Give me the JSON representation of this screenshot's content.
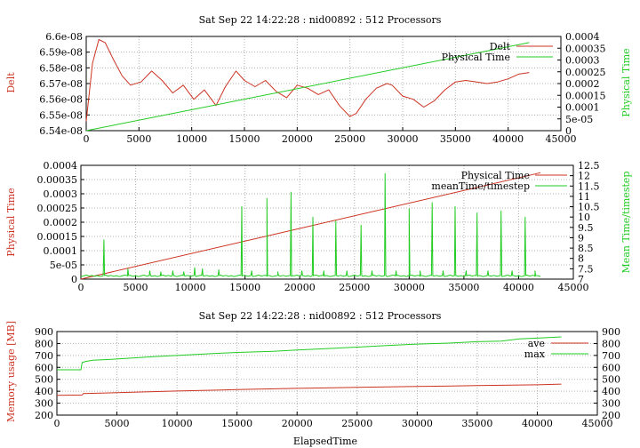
{
  "chart_data": [
    {
      "type": "line",
      "title": "Sat Sep 22 14:22:28 : nid00892 : 512 Processors",
      "xlim": [
        0,
        45000
      ],
      "xticks": [
        "0",
        "5000",
        "10000",
        "15000",
        "20000",
        "25000",
        "30000",
        "35000",
        "40000",
        "45000"
      ],
      "ylabel": "Delt",
      "ylim": [
        6.54e-08,
        6.6e-08
      ],
      "yticks": [
        "6.54e-08",
        "6.55e-08",
        "6.56e-08",
        "6.57e-08",
        "6.58e-08",
        "6.59e-08",
        "6.6e-08"
      ],
      "y2label": "Physical Time",
      "y2lim": [
        0,
        0.0004
      ],
      "y2ticks": [
        "0",
        "5e-05",
        "0.0001",
        "0.00015",
        "0.0002",
        "0.00025",
        "0.0003",
        "0.00035",
        "0.0004"
      ],
      "grid": true,
      "legend_position": "top-right",
      "series": [
        {
          "name": "Delt",
          "color": "#cc3322",
          "axis": "y",
          "x": [
            0,
            600,
            1200,
            1800,
            2600,
            3400,
            4200,
            5200,
            6200,
            7200,
            8200,
            9200,
            10200,
            11200,
            12300,
            13200,
            14200,
            15000,
            16000,
            17000,
            18000,
            19000,
            20000,
            21000,
            22000,
            23000,
            24000,
            25000,
            25600,
            26500,
            27500,
            28500,
            29000,
            30000,
            31000,
            32000,
            33000,
            34000,
            35000,
            36000,
            37000,
            38000,
            39000,
            40000,
            41000,
            42000
          ],
          "values": [
            6.546e-08,
            6.583e-08,
            6.598e-08,
            6.596e-08,
            6.585e-08,
            6.575e-08,
            6.569e-08,
            6.571e-08,
            6.578e-08,
            6.572e-08,
            6.564e-08,
            6.569e-08,
            6.56e-08,
            6.566e-08,
            6.556e-08,
            6.568e-08,
            6.578e-08,
            6.572e-08,
            6.568e-08,
            6.572e-08,
            6.565e-08,
            6.561e-08,
            6.569e-08,
            6.567e-08,
            6.563e-08,
            6.566e-08,
            6.556e-08,
            6.549e-08,
            6.551e-08,
            6.56e-08,
            6.567e-08,
            6.57e-08,
            6.569e-08,
            6.562e-08,
            6.56e-08,
            6.555e-08,
            6.559e-08,
            6.566e-08,
            6.571e-08,
            6.572e-08,
            6.571e-08,
            6.57e-08,
            6.571e-08,
            6.573e-08,
            6.576e-08,
            6.577e-08
          ]
        },
        {
          "name": "Physical Time",
          "color": "#22cc22",
          "axis": "y2",
          "x": [
            0,
            42000
          ],
          "values": [
            0,
            0.000374
          ]
        }
      ]
    },
    {
      "type": "line",
      "title": "",
      "xlim": [
        0,
        45000
      ],
      "xticks": [
        "0",
        "5000",
        "10000",
        "15000",
        "20000",
        "25000",
        "30000",
        "35000",
        "40000",
        "45000"
      ],
      "ylabel": "Physical Time",
      "ylim": [
        0,
        0.0004
      ],
      "yticks": [
        "0",
        "5e-05",
        "0.0001",
        "0.00015",
        "0.0002",
        "0.00025",
        "0.0003",
        "0.00035",
        "0.0004"
      ],
      "y2label": "Mean Time/timestep",
      "y2lim": [
        7,
        12.5
      ],
      "y2ticks": [
        "7",
        "7.5",
        "8",
        "8.5",
        "9",
        "9.5",
        "10",
        "10.5",
        "11",
        "11.5",
        "12",
        "12.5"
      ],
      "grid": true,
      "legend_position": "top-right",
      "series": [
        {
          "name": "Physical Time",
          "color": "#cc3322",
          "axis": "y",
          "x": [
            0,
            42000
          ],
          "values": [
            0,
            0.000374
          ]
        },
        {
          "name": "meanTime/timestep",
          "color": "#22cc22",
          "axis": "y2",
          "baseline": 7.12,
          "spikes": [
            [
              2100,
              8.9
            ],
            [
              4300,
              7.5
            ],
            [
              6300,
              7.4
            ],
            [
              7300,
              7.35
            ],
            [
              8400,
              7.4
            ],
            [
              9400,
              7.35
            ],
            [
              10400,
              7.55
            ],
            [
              11100,
              7.5
            ],
            [
              12600,
              7.45
            ],
            [
              14700,
              10.5
            ],
            [
              15600,
              7.4
            ],
            [
              17000,
              10.9
            ],
            [
              18000,
              7.35
            ],
            [
              19200,
              11.2
            ],
            [
              20200,
              7.4
            ],
            [
              21200,
              10.0
            ],
            [
              22200,
              7.4
            ],
            [
              23300,
              9.8
            ],
            [
              24300,
              7.4
            ],
            [
              25600,
              9.6
            ],
            [
              26600,
              7.4
            ],
            [
              27800,
              12.1
            ],
            [
              28800,
              7.4
            ],
            [
              30000,
              10.4
            ],
            [
              31000,
              7.4
            ],
            [
              32100,
              10.7
            ],
            [
              33100,
              7.4
            ],
            [
              34200,
              10.5
            ],
            [
              35200,
              7.4
            ],
            [
              36200,
              10.2
            ],
            [
              37200,
              7.4
            ],
            [
              38400,
              10.3
            ],
            [
              39400,
              7.4
            ],
            [
              40600,
              10.0
            ],
            [
              41500,
              7.4
            ]
          ]
        }
      ]
    },
    {
      "type": "line",
      "title": "Sat Sep 22 14:22:28 : nid00892 : 512 Processors",
      "xlabel": "ElapsedTime",
      "xlim": [
        0,
        45000
      ],
      "xticks": [
        "0",
        "5000",
        "10000",
        "15000",
        "20000",
        "25000",
        "30000",
        "35000",
        "40000",
        "45000"
      ],
      "ylabel": "Memory usage [MB]",
      "ylim": [
        200,
        900
      ],
      "yticks": [
        "200",
        "300",
        "400",
        "500",
        "600",
        "700",
        "800",
        "900"
      ],
      "y2ticks": [
        "200",
        "300",
        "400",
        "500",
        "600",
        "700",
        "800",
        "900"
      ],
      "grid": true,
      "legend_position": "top-right",
      "series": [
        {
          "name": "ave",
          "color": "#cc3322",
          "x": [
            0,
            2100,
            2200,
            5000,
            10000,
            15000,
            20000,
            25000,
            30000,
            35000,
            40000,
            42000
          ],
          "values": [
            365,
            368,
            380,
            388,
            402,
            414,
            424,
            432,
            440,
            447,
            454,
            460
          ]
        },
        {
          "name": "max",
          "color": "#22cc22",
          "x": [
            0,
            2000,
            2100,
            2400,
            3000,
            5000,
            8000,
            10000,
            13000,
            15000,
            18000,
            20000,
            22000,
            25000,
            28000,
            30000,
            33000,
            35000,
            37000,
            38500,
            40000,
            42000
          ],
          "values": [
            580,
            580,
            640,
            650,
            660,
            670,
            690,
            700,
            715,
            725,
            735,
            745,
            755,
            770,
            785,
            795,
            805,
            815,
            820,
            838,
            845,
            855
          ]
        }
      ]
    }
  ]
}
